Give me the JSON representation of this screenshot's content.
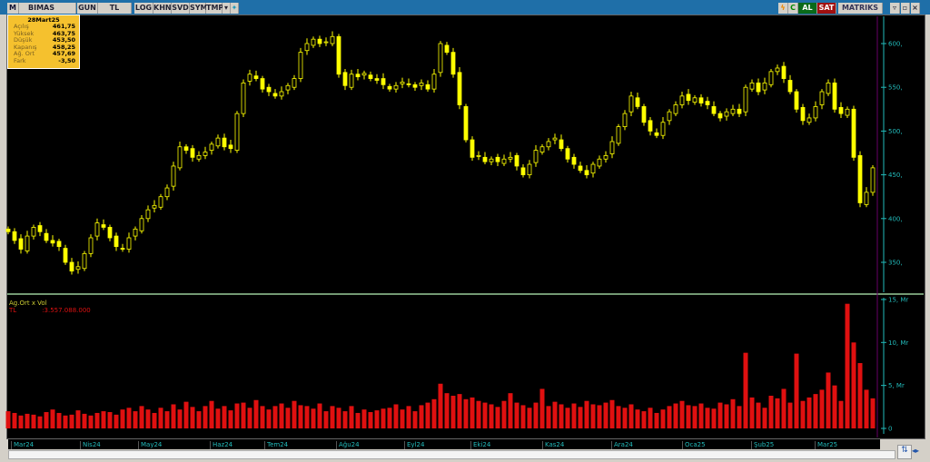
{
  "toolbar": {
    "symbol": "BIMAS",
    "period": "GUN",
    "currency": "TL",
    "buttons": [
      "LOG",
      "KHN",
      "SVD",
      "SYM",
      "TMP"
    ],
    "buy": "AL",
    "sell": "SAT",
    "brand": "MATRIKS"
  },
  "info": {
    "date": "28Mart25",
    "rows": [
      {
        "label": "Açılış",
        "value": "461,75"
      },
      {
        "label": "Yüksek",
        "value": "463,75"
      },
      {
        "label": "Düşük",
        "value": "453,50"
      },
      {
        "label": "Kapanış",
        "value": "458,25"
      },
      {
        "label": "Ağ. Ort",
        "value": "457,69"
      },
      {
        "label": "Fark",
        "value": "-3,50"
      }
    ]
  },
  "volume_panel": {
    "title": "Ag.Ort x Vol",
    "unit": "TL",
    "value": ":3.557.088.000"
  },
  "colors": {
    "candle": "#ffff00",
    "volume": "#e01010",
    "axis": "#22bbbb"
  },
  "chart_data": {
    "type": "candlestick",
    "price_ticks": [
      "600,",
      "550,",
      "500,",
      "450,",
      "400,",
      "350,"
    ],
    "price_tick_values": [
      600,
      550,
      500,
      450,
      400,
      350
    ],
    "ylim": [
      335,
      615
    ],
    "volume_ticks": [
      "15, Mr",
      "10, Mr",
      "5, Mr",
      "0"
    ],
    "volume_tick_values": [
      15,
      10,
      5,
      0
    ],
    "months": [
      "Mar24",
      "Nis24",
      "May24",
      "Haz24",
      "Tem24",
      "Ağu24",
      "Eyl24",
      "Eki24",
      "Kas24",
      "Ara24",
      "Oca25",
      "Şub25",
      "Mar25"
    ],
    "closes": [
      385,
      375,
      365,
      380,
      390,
      385,
      375,
      372,
      368,
      350,
      340,
      345,
      360,
      378,
      395,
      390,
      378,
      368,
      365,
      378,
      388,
      400,
      410,
      415,
      425,
      435,
      460,
      482,
      478,
      470,
      472,
      476,
      485,
      492,
      482,
      480,
      520,
      555,
      565,
      560,
      548,
      545,
      540,
      545,
      552,
      560,
      590,
      600,
      605,
      600,
      602,
      608,
      565,
      552,
      565,
      562,
      566,
      560,
      558,
      553,
      548,
      552,
      556,
      553,
      550,
      555,
      548,
      565,
      600,
      590,
      565,
      530,
      490,
      470,
      472,
      465,
      468,
      465,
      468,
      470,
      460,
      450,
      462,
      478,
      482,
      488,
      492,
      480,
      468,
      462,
      455,
      450,
      462,
      468,
      472,
      488,
      505,
      520,
      540,
      528,
      510,
      500,
      495,
      510,
      522,
      530,
      540,
      535,
      538,
      532,
      530,
      520,
      515,
      522,
      525,
      520,
      550,
      555,
      545,
      555,
      568,
      572,
      560,
      545,
      525,
      512,
      515,
      528,
      545,
      555,
      525,
      520,
      525,
      470,
      418,
      430,
      458
    ],
    "volumes_mr": [
      2,
      1.8,
      1.5,
      1.7,
      1.6,
      1.4,
      1.9,
      2.2,
      1.8,
      1.5,
      1.6,
      2.1,
      1.7,
      1.5,
      1.8,
      2.0,
      1.9,
      1.6,
      2.2,
      2.4,
      2.0,
      2.6,
      2.2,
      1.8,
      2.4,
      2.0,
      2.8,
      2.2,
      3.1,
      2.5,
      2.0,
      2.6,
      3.2,
      2.3,
      2.6,
      2.1,
      2.9,
      3.0,
      2.4,
      3.3,
      2.6,
      2.2,
      2.6,
      2.9,
      2.4,
      3.2,
      2.7,
      2.6,
      2.3,
      2.9,
      2.0,
      2.6,
      2.4,
      2.0,
      2.6,
      1.8,
      2.2,
      1.9,
      2.1,
      2.3,
      2.4,
      2.8,
      2.2,
      2.6,
      2.0,
      2.7,
      3.0,
      3.4,
      5.2,
      4.1,
      3.8,
      4.0,
      3.4,
      3.6,
      3.2,
      3.0,
      2.8,
      2.5,
      3.2,
      4.1,
      3.0,
      2.7,
      2.4,
      3.0,
      4.6,
      2.6,
      3.1,
      2.8,
      2.4,
      2.9,
      2.5,
      3.2,
      2.8,
      2.7,
      3.0,
      3.3,
      2.6,
      2.4,
      2.8,
      2.2,
      2.0,
      2.4,
      1.8,
      2.2,
      2.6,
      2.9,
      3.2,
      2.7,
      2.6,
      2.9,
      2.4,
      2.3,
      3.0,
      2.8,
      3.4,
      2.6,
      8.8,
      3.6,
      3.0,
      2.4,
      3.8,
      3.5,
      4.6,
      3.0,
      8.7,
      3.2,
      3.6,
      4.0,
      4.5,
      6.5,
      5.0,
      3.2,
      14.5,
      10,
      7.6,
      4.5,
      3.5
    ]
  }
}
